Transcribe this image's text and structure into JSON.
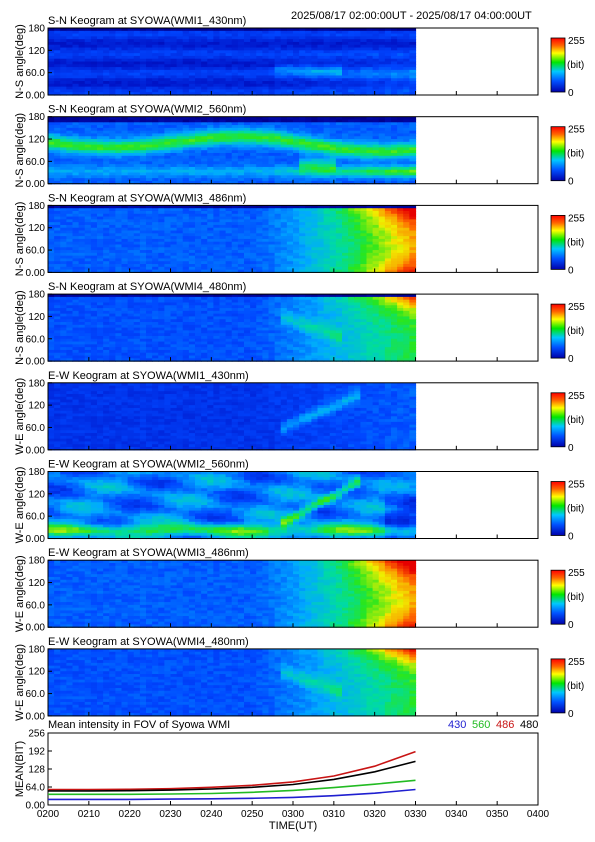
{
  "header": {
    "time_range": "2025/08/17 02:00:00UT - 2025/08/17 04:00:00UT"
  },
  "colorbar": {
    "max_label": "255",
    "unit_label": "(bit)",
    "min_label": "0"
  },
  "keograms": [
    {
      "title": "S-N Keogram at SYOWA(WMI1_430nm)",
      "ylabel": "N-S angle(deg)",
      "kind": "ns430"
    },
    {
      "title": "S-N Keogram at SYOWA(WMI2_560nm)",
      "ylabel": "N-S angle(deg)",
      "kind": "ns560"
    },
    {
      "title": "S-N Keogram at SYOWA(WMI3_486nm)",
      "ylabel": "N-S angle(deg)",
      "kind": "ns486"
    },
    {
      "title": "S-N Keogram at SYOWA(WMI4_480nm)",
      "ylabel": "N-S angle(deg)",
      "kind": "ns480"
    },
    {
      "title": "E-W Keogram at SYOWA(WMI1_430nm)",
      "ylabel": "W-E angle(deg)",
      "kind": "ew430"
    },
    {
      "title": "E-W Keogram at SYOWA(WMI2_560nm)",
      "ylabel": "W-E angle(deg)",
      "kind": "ew560"
    },
    {
      "title": "E-W Keogram at SYOWA(WMI3_486nm)",
      "ylabel": "W-E angle(deg)",
      "kind": "ew486"
    },
    {
      "title": "E-W Keogram at SYOWA(WMI4_480nm)",
      "ylabel": "W-E angle(deg)",
      "kind": "ew480"
    }
  ],
  "keogram_yticks": [
    "180",
    "120",
    "60.0",
    "0.00"
  ],
  "keogram_ylim": [
    0,
    180
  ],
  "data_end_time": "0330",
  "chart_data": {
    "type": "line",
    "title": "Mean intensity in FOV of Syowa WMI",
    "xlabel": "TIME(UT)",
    "ylabel": "MEAN(BIT)",
    "x_ticks": [
      "0200",
      "0210",
      "0220",
      "0230",
      "0240",
      "0250",
      "0300",
      "0310",
      "0320",
      "0330",
      "0340",
      "0350",
      "0400"
    ],
    "y_ticks": [
      "256",
      "192",
      "128",
      "64.0",
      "0.00"
    ],
    "ylim": [
      0,
      256
    ],
    "x": [
      "0200",
      "0210",
      "0220",
      "0230",
      "0240",
      "0250",
      "0300",
      "0310",
      "0320",
      "0330"
    ],
    "series": [
      {
        "name": "430",
        "color": "#1f1fd0",
        "values": [
          20,
          20,
          20,
          21,
          22,
          24,
          27,
          33,
          42,
          55
        ]
      },
      {
        "name": "560",
        "color": "#22bb22",
        "values": [
          38,
          38,
          38,
          39,
          41,
          45,
          52,
          62,
          74,
          88
        ]
      },
      {
        "name": "486",
        "color": "#c81414",
        "values": [
          55,
          55,
          56,
          58,
          63,
          70,
          82,
          103,
          138,
          190
        ]
      },
      {
        "name": "480",
        "color": "#000000",
        "values": [
          50,
          50,
          51,
          53,
          57,
          63,
          73,
          91,
          118,
          155
        ]
      }
    ]
  }
}
